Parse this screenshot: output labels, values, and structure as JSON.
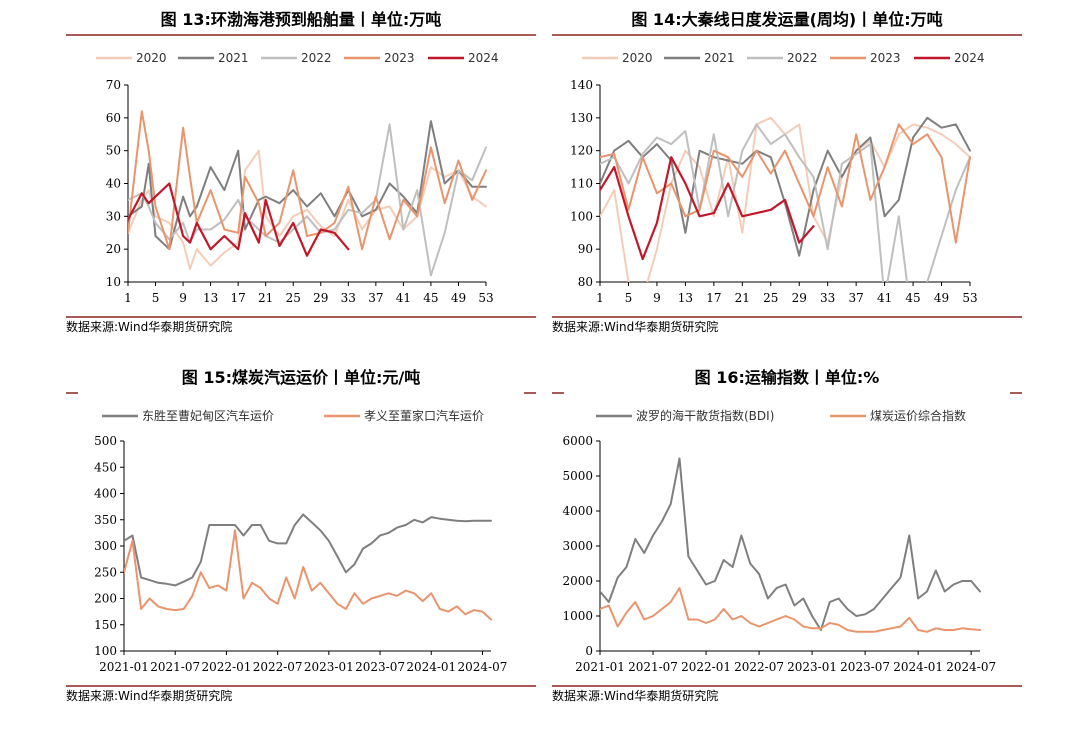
{
  "source_label": "数据来源:Wind华泰期货研究院",
  "chart_data": [
    {
      "id": "c13",
      "type": "line",
      "title": "图 13:环渤海港预到船舶量丨单位:万吨",
      "x_ticks": [
        "1",
        "5",
        "9",
        "13",
        "17",
        "21",
        "25",
        "29",
        "33",
        "37",
        "41",
        "45",
        "49",
        "53"
      ],
      "xlim": [
        1,
        53
      ],
      "ylim": [
        10,
        70
      ],
      "y_ticks": [
        10,
        20,
        30,
        40,
        50,
        60,
        70
      ],
      "x_points": [
        1,
        3,
        4,
        5,
        7,
        9,
        10,
        11,
        13,
        15,
        17,
        18,
        20,
        21,
        23,
        25,
        27,
        29,
        31,
        33,
        35,
        37,
        39,
        41,
        43,
        45,
        47,
        49,
        51,
        53
      ],
      "series": [
        {
          "name": "2020",
          "color": "#f4cdb8",
          "values": [
            25,
            35,
            38,
            30,
            28,
            22,
            14,
            20,
            15,
            19,
            22,
            44,
            50,
            30,
            24,
            30,
            32,
            27,
            24,
            35,
            26,
            32,
            33,
            26,
            30,
            45,
            42,
            44,
            36,
            33
          ]
        },
        {
          "name": "2021",
          "color": "#7f7f7f",
          "values": [
            30,
            33,
            46,
            24,
            20,
            36,
            30,
            33,
            45,
            38,
            50,
            26,
            35,
            36,
            34,
            38,
            33,
            37,
            30,
            38,
            30,
            32,
            40,
            36,
            31,
            59,
            40,
            44,
            39,
            39
          ]
        },
        {
          "name": "2022",
          "color": "#bfbfbf",
          "values": [
            35,
            37,
            33,
            28,
            23,
            28,
            22,
            26,
            26,
            29,
            35,
            30,
            26,
            24,
            22,
            26,
            30,
            25,
            26,
            32,
            31,
            35,
            58,
            26,
            38,
            12,
            25,
            44,
            41,
            51
          ]
        },
        {
          "name": "2023",
          "color": "#e8956d",
          "values": [
            25,
            62,
            50,
            33,
            20,
            57,
            42,
            28,
            38,
            26,
            25,
            42,
            34,
            24,
            28,
            44,
            24,
            25,
            28,
            39,
            20,
            36,
            23,
            35,
            30,
            51,
            34,
            47,
            35,
            44
          ]
        },
        {
          "name": "2024",
          "color": "#c0182a",
          "values": [
            29,
            37,
            34,
            36,
            40,
            24,
            22,
            28,
            20,
            24,
            20,
            31,
            22,
            35,
            21,
            28,
            18,
            26,
            25,
            20
          ]
        }
      ]
    },
    {
      "id": "c14",
      "type": "line",
      "title": "图 14:大秦线日度发运量(周均)丨单位:万吨",
      "x_ticks": [
        "1",
        "5",
        "9",
        "13",
        "17",
        "21",
        "25",
        "29",
        "33",
        "37",
        "41",
        "45",
        "49",
        "53"
      ],
      "xlim": [
        1,
        53
      ],
      "ylim": [
        80,
        140
      ],
      "y_ticks": [
        80,
        90,
        100,
        110,
        120,
        130,
        140
      ],
      "x_points": [
        1,
        3,
        5,
        7,
        9,
        11,
        13,
        15,
        17,
        19,
        21,
        23,
        25,
        27,
        29,
        31,
        33,
        35,
        37,
        39,
        41,
        43,
        45,
        47,
        49,
        51,
        53
      ],
      "series": [
        {
          "name": "2020",
          "color": "#f4cdb8",
          "values": [
            100,
            108,
            80,
            75,
            90,
            110,
            120,
            115,
            100,
            118,
            95,
            128,
            130,
            125,
            128,
            100,
            92,
            112,
            120,
            123,
            115,
            125,
            128,
            127,
            125,
            122,
            118
          ]
        },
        {
          "name": "2021",
          "color": "#7f7f7f",
          "values": [
            110,
            120,
            123,
            118,
            122,
            117,
            95,
            120,
            118,
            117,
            116,
            120,
            118,
            104,
            88,
            108,
            120,
            112,
            120,
            124,
            100,
            105,
            124,
            130,
            127,
            128,
            120
          ]
        },
        {
          "name": "2022",
          "color": "#bfbfbf",
          "values": [
            116,
            118,
            110,
            119,
            124,
            122,
            126,
            102,
            125,
            100,
            120,
            128,
            122,
            125,
            118,
            112,
            90,
            116,
            119,
            122,
            75,
            100,
            65,
            80,
            94,
            108,
            118
          ]
        },
        {
          "name": "2023",
          "color": "#e8956d",
          "values": [
            118,
            119,
            102,
            118,
            107,
            110,
            100,
            102,
            120,
            118,
            112,
            120,
            113,
            120,
            110,
            100,
            115,
            103,
            125,
            105,
            115,
            128,
            122,
            125,
            118,
            92,
            118
          ]
        },
        {
          "name": "2024",
          "color": "#c0182a",
          "values": [
            108,
            115,
            100,
            87,
            98,
            118,
            110,
            100,
            101,
            110,
            100,
            101,
            102,
            105,
            92,
            97
          ]
        }
      ]
    },
    {
      "id": "c15",
      "type": "line",
      "title": "图 15:煤炭汽运运价丨单位:元/吨",
      "x_ticks": [
        "2021-01",
        "2021-07",
        "2022-01",
        "2022-07",
        "2023-01",
        "2023-07",
        "2024-01",
        "2024-07"
      ],
      "xlim": [
        "2021-01",
        "2024-08"
      ],
      "ylim": [
        100,
        500
      ],
      "y_ticks": [
        100,
        150,
        200,
        250,
        300,
        350,
        400,
        450,
        500
      ],
      "x_points": [
        "2021-01",
        "2021-02",
        "2021-03",
        "2021-04",
        "2021-05",
        "2021-06",
        "2021-07",
        "2021-08",
        "2021-09",
        "2021-10",
        "2021-11",
        "2021-12",
        "2022-01",
        "2022-02",
        "2022-03",
        "2022-04",
        "2022-05",
        "2022-06",
        "2022-07",
        "2022-08",
        "2022-09",
        "2022-10",
        "2022-11",
        "2022-12",
        "2023-01",
        "2023-02",
        "2023-03",
        "2023-04",
        "2023-05",
        "2023-06",
        "2023-07",
        "2023-08",
        "2023-09",
        "2023-10",
        "2023-11",
        "2023-12",
        "2024-01",
        "2024-02",
        "2024-03",
        "2024-04",
        "2024-05",
        "2024-06",
        "2024-07",
        "2024-08"
      ],
      "series": [
        {
          "name": "东胜至曹妃甸区汽车运价",
          "color": "#7f7f7f",
          "values": [
            310,
            320,
            240,
            235,
            230,
            228,
            225,
            232,
            240,
            270,
            340,
            340,
            340,
            340,
            320,
            340,
            340,
            310,
            305,
            305,
            340,
            360,
            345,
            330,
            310,
            280,
            250,
            265,
            295,
            305,
            320,
            325,
            335,
            340,
            350,
            345,
            355,
            352,
            350,
            348,
            347,
            348,
            348,
            348
          ]
        },
        {
          "name": "孝义至董家口汽车运价",
          "color": "#e8956d",
          "values": [
            250,
            310,
            180,
            200,
            185,
            180,
            178,
            180,
            205,
            250,
            220,
            225,
            215,
            330,
            200,
            230,
            220,
            200,
            190,
            240,
            200,
            260,
            215,
            230,
            210,
            190,
            180,
            210,
            190,
            200,
            205,
            210,
            205,
            215,
            210,
            195,
            210,
            180,
            175,
            185,
            170,
            178,
            175,
            160
          ]
        }
      ]
    },
    {
      "id": "c16",
      "type": "line",
      "title": "图 16:运输指数丨单位:%",
      "x_ticks": [
        "2021-01",
        "2021-07",
        "2022-01",
        "2022-07",
        "2023-01",
        "2023-07",
        "2024-01",
        "2024-07"
      ],
      "xlim": [
        "2021-01",
        "2024-08"
      ],
      "ylim": [
        0,
        6000
      ],
      "y_ticks": [
        0,
        1000,
        2000,
        3000,
        4000,
        5000,
        6000
      ],
      "x_points": [
        "2021-01",
        "2021-02",
        "2021-03",
        "2021-04",
        "2021-05",
        "2021-06",
        "2021-07",
        "2021-08",
        "2021-09",
        "2021-10",
        "2021-11",
        "2021-12",
        "2022-01",
        "2022-02",
        "2022-03",
        "2022-04",
        "2022-05",
        "2022-06",
        "2022-07",
        "2022-08",
        "2022-09",
        "2022-10",
        "2022-11",
        "2022-12",
        "2023-01",
        "2023-02",
        "2023-03",
        "2023-04",
        "2023-05",
        "2023-06",
        "2023-07",
        "2023-08",
        "2023-09",
        "2023-10",
        "2023-11",
        "2023-12",
        "2024-01",
        "2024-02",
        "2024-03",
        "2024-04",
        "2024-05",
        "2024-06",
        "2024-07",
        "2024-08"
      ],
      "series": [
        {
          "name": "波罗的海干散货指数(BDI)",
          "color": "#7f7f7f",
          "values": [
            1700,
            1400,
            2100,
            2400,
            3200,
            2800,
            3300,
            3700,
            4200,
            5500,
            2700,
            2300,
            1900,
            2000,
            2600,
            2400,
            3300,
            2500,
            2200,
            1500,
            1800,
            1900,
            1300,
            1500,
            1000,
            600,
            1400,
            1500,
            1200,
            1000,
            1050,
            1200,
            1500,
            1800,
            2100,
            3300,
            1500,
            1700,
            2300,
            1700,
            1900,
            2000,
            2000,
            1700
          ]
        },
        {
          "name": "煤炭运价综合指数",
          "color": "#e8956d",
          "values": [
            1200,
            1300,
            700,
            1100,
            1400,
            900,
            1000,
            1200,
            1400,
            1800,
            900,
            900,
            800,
            900,
            1200,
            900,
            1000,
            800,
            700,
            800,
            900,
            1000,
            900,
            700,
            650,
            650,
            800,
            750,
            600,
            550,
            550,
            550,
            600,
            650,
            700,
            950,
            600,
            550,
            650,
            600,
            600,
            650,
            620,
            600
          ]
        }
      ]
    }
  ]
}
